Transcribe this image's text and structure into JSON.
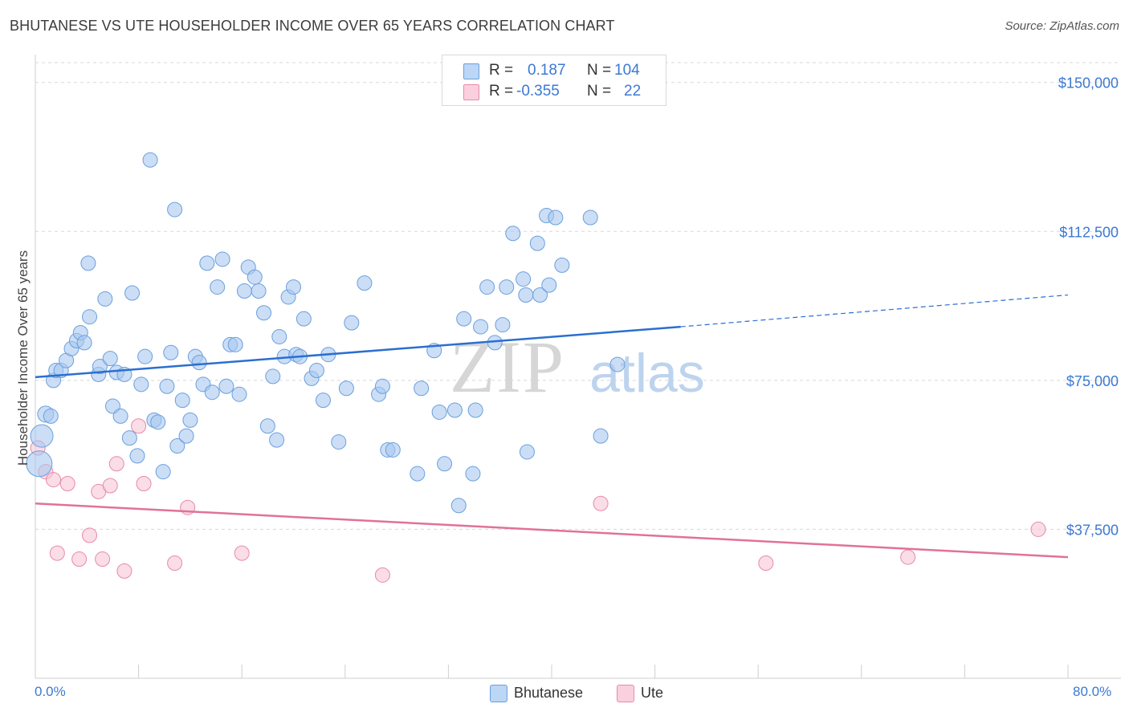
{
  "title": "BHUTANESE VS UTE HOUSEHOLDER INCOME OVER 65 YEARS CORRELATION CHART",
  "source": "Source: ZipAtlas.com",
  "watermark": {
    "zip": "ZIP",
    "atlas": "atlas"
  },
  "legend": {
    "r_label": "R =",
    "n_label": "N =",
    "series": [
      {
        "name": "Bhutanese",
        "r": "0.187",
        "n": "104",
        "color": "#a8c8f0",
        "stroke": "#6a9fdc"
      },
      {
        "name": "Ute",
        "r": "-0.355",
        "n": "22",
        "color": "#f7bcd0",
        "stroke": "#e88aa8"
      }
    ]
  },
  "colors": {
    "bhutanese_fill": "#a8c8f0",
    "bhutanese_stroke": "#6a9fdc",
    "bhutanese_line": "#2b6fd0",
    "ute_fill": "#f7c6d6",
    "ute_stroke": "#e88aa8",
    "ute_line": "#e0729a",
    "grid": "#d8d8d8",
    "axis_text": "#3b79d3"
  },
  "chart_data": {
    "type": "scatter",
    "title": "BHUTANESE VS UTE HOUSEHOLDER INCOME OVER 65 YEARS CORRELATION CHART",
    "xlabel": "",
    "ylabel": "Householder Income Over 65 years",
    "xlim": [
      0,
      80
    ],
    "ylim": [
      0,
      155000
    ],
    "x_tick_labels": [
      "0.0%",
      "80.0%"
    ],
    "y_ticks": [
      37500,
      75000,
      112500,
      150000
    ],
    "y_tick_labels": [
      "$37,500",
      "$75,000",
      "$112,500",
      "$150,000"
    ],
    "grid": true,
    "legend_position": "top-center",
    "series": [
      {
        "name": "Bhutanese",
        "trend": {
          "x_start": 0,
          "y_start": 75800,
          "x_solid_end": 50,
          "y_solid_end": 88500,
          "x_end": 80,
          "y_end": 96500
        },
        "points": [
          [
            0.5,
            61000,
            14
          ],
          [
            0.8,
            66500,
            10
          ],
          [
            1.2,
            66000,
            9
          ],
          [
            1.4,
            75000,
            9
          ],
          [
            1.6,
            77500,
            9
          ],
          [
            2.0,
            77500,
            9
          ],
          [
            2.4,
            80000,
            9
          ],
          [
            2.8,
            83000,
            9
          ],
          [
            3.2,
            85000,
            9
          ],
          [
            3.5,
            87000,
            9
          ],
          [
            3.8,
            84500,
            9
          ],
          [
            4.2,
            91000,
            9
          ],
          [
            4.1,
            104500,
            9
          ],
          [
            4.9,
            76500,
            9
          ],
          [
            5.0,
            78500,
            9
          ],
          [
            5.4,
            95500,
            9
          ],
          [
            5.8,
            80500,
            9
          ],
          [
            6.0,
            68500,
            9
          ],
          [
            6.3,
            77000,
            9
          ],
          [
            6.6,
            66000,
            9
          ],
          [
            6.9,
            76500,
            9
          ],
          [
            7.3,
            60500,
            9
          ],
          [
            7.5,
            97000,
            9
          ],
          [
            7.9,
            56000,
            9
          ],
          [
            8.2,
            74000,
            9
          ],
          [
            8.5,
            81000,
            9
          ],
          [
            8.9,
            130500,
            9
          ],
          [
            9.2,
            65000,
            9
          ],
          [
            9.5,
            64500,
            9
          ],
          [
            9.9,
            52000,
            9
          ],
          [
            10.2,
            73500,
            9
          ],
          [
            10.5,
            82000,
            9
          ],
          [
            10.8,
            118000,
            9
          ],
          [
            11.0,
            58500,
            9
          ],
          [
            11.4,
            70000,
            9
          ],
          [
            11.7,
            61000,
            9
          ],
          [
            12.0,
            65000,
            9
          ],
          [
            12.4,
            81000,
            9
          ],
          [
            12.7,
            79500,
            9
          ],
          [
            13.0,
            74000,
            9
          ],
          [
            13.3,
            104500,
            9
          ],
          [
            13.7,
            72000,
            9
          ],
          [
            14.1,
            98500,
            9
          ],
          [
            14.5,
            105500,
            9
          ],
          [
            14.8,
            73500,
            9
          ],
          [
            15.1,
            84000,
            9
          ],
          [
            15.5,
            84000,
            9
          ],
          [
            15.8,
            71500,
            9
          ],
          [
            16.2,
            97500,
            9
          ],
          [
            16.5,
            103500,
            9
          ],
          [
            17.0,
            101000,
            9
          ],
          [
            17.3,
            97500,
            9
          ],
          [
            17.7,
            92000,
            9
          ],
          [
            18.0,
            63500,
            9
          ],
          [
            18.4,
            76000,
            9
          ],
          [
            18.7,
            60000,
            9
          ],
          [
            18.9,
            86000,
            9
          ],
          [
            19.3,
            81000,
            9
          ],
          [
            19.6,
            96000,
            9
          ],
          [
            20.0,
            98500,
            9
          ],
          [
            20.2,
            81500,
            9
          ],
          [
            20.5,
            81000,
            9
          ],
          [
            20.8,
            90500,
            9
          ],
          [
            21.4,
            75500,
            9
          ],
          [
            21.8,
            77500,
            9
          ],
          [
            22.3,
            70000,
            9
          ],
          [
            22.7,
            81500,
            9
          ],
          [
            23.5,
            59500,
            9
          ],
          [
            24.1,
            73000,
            9
          ],
          [
            24.5,
            89500,
            9
          ],
          [
            25.5,
            99500,
            9
          ],
          [
            26.6,
            71500,
            9
          ],
          [
            26.9,
            73500,
            9
          ],
          [
            27.3,
            57500,
            9
          ],
          [
            27.7,
            57500,
            9
          ],
          [
            29.6,
            51500,
            9
          ],
          [
            29.9,
            73000,
            9
          ],
          [
            30.9,
            82500,
            9
          ],
          [
            31.3,
            67000,
            9
          ],
          [
            31.7,
            54000,
            9
          ],
          [
            32.5,
            67500,
            9
          ],
          [
            32.8,
            43500,
            9
          ],
          [
            33.2,
            90500,
            9
          ],
          [
            33.9,
            51500,
            9
          ],
          [
            34.1,
            67500,
            9
          ],
          [
            34.5,
            88500,
            9
          ],
          [
            35.0,
            98500,
            9
          ],
          [
            35.6,
            84500,
            9
          ],
          [
            36.2,
            89000,
            9
          ],
          [
            36.5,
            98500,
            9
          ],
          [
            37.0,
            112000,
            9
          ],
          [
            37.8,
            100500,
            9
          ],
          [
            38.0,
            96500,
            9
          ],
          [
            38.1,
            57000,
            9
          ],
          [
            38.9,
            109500,
            9
          ],
          [
            39.1,
            96500,
            9
          ],
          [
            39.6,
            116500,
            9
          ],
          [
            39.8,
            99000,
            9
          ],
          [
            40.3,
            116000,
            9
          ],
          [
            40.8,
            104000,
            9
          ],
          [
            43.0,
            116000,
            9
          ],
          [
            43.8,
            61000,
            9
          ],
          [
            45.1,
            79000,
            9
          ],
          [
            0.3,
            54000,
            16
          ]
        ]
      },
      {
        "name": "Ute",
        "trend": {
          "x_start": 0,
          "y_start": 44000,
          "x_end": 80,
          "y_end": 30500
        },
        "points": [
          [
            0.2,
            58000,
            9
          ],
          [
            0.8,
            52000,
            9
          ],
          [
            1.4,
            50000,
            9
          ],
          [
            1.7,
            31500,
            9
          ],
          [
            2.5,
            49000,
            9
          ],
          [
            3.4,
            30000,
            9
          ],
          [
            4.2,
            36000,
            9
          ],
          [
            4.9,
            47000,
            9
          ],
          [
            5.2,
            30000,
            9
          ],
          [
            5.8,
            48500,
            9
          ],
          [
            6.3,
            54000,
            9
          ],
          [
            6.9,
            27000,
            9
          ],
          [
            8.0,
            63500,
            9
          ],
          [
            8.4,
            49000,
            9
          ],
          [
            10.8,
            29000,
            9
          ],
          [
            11.8,
            43000,
            9
          ],
          [
            16.0,
            31500,
            9
          ],
          [
            26.9,
            26000,
            9
          ],
          [
            43.8,
            44000,
            9
          ],
          [
            56.6,
            29000,
            9
          ],
          [
            67.6,
            30500,
            9
          ],
          [
            77.7,
            37500,
            9
          ]
        ]
      }
    ]
  }
}
